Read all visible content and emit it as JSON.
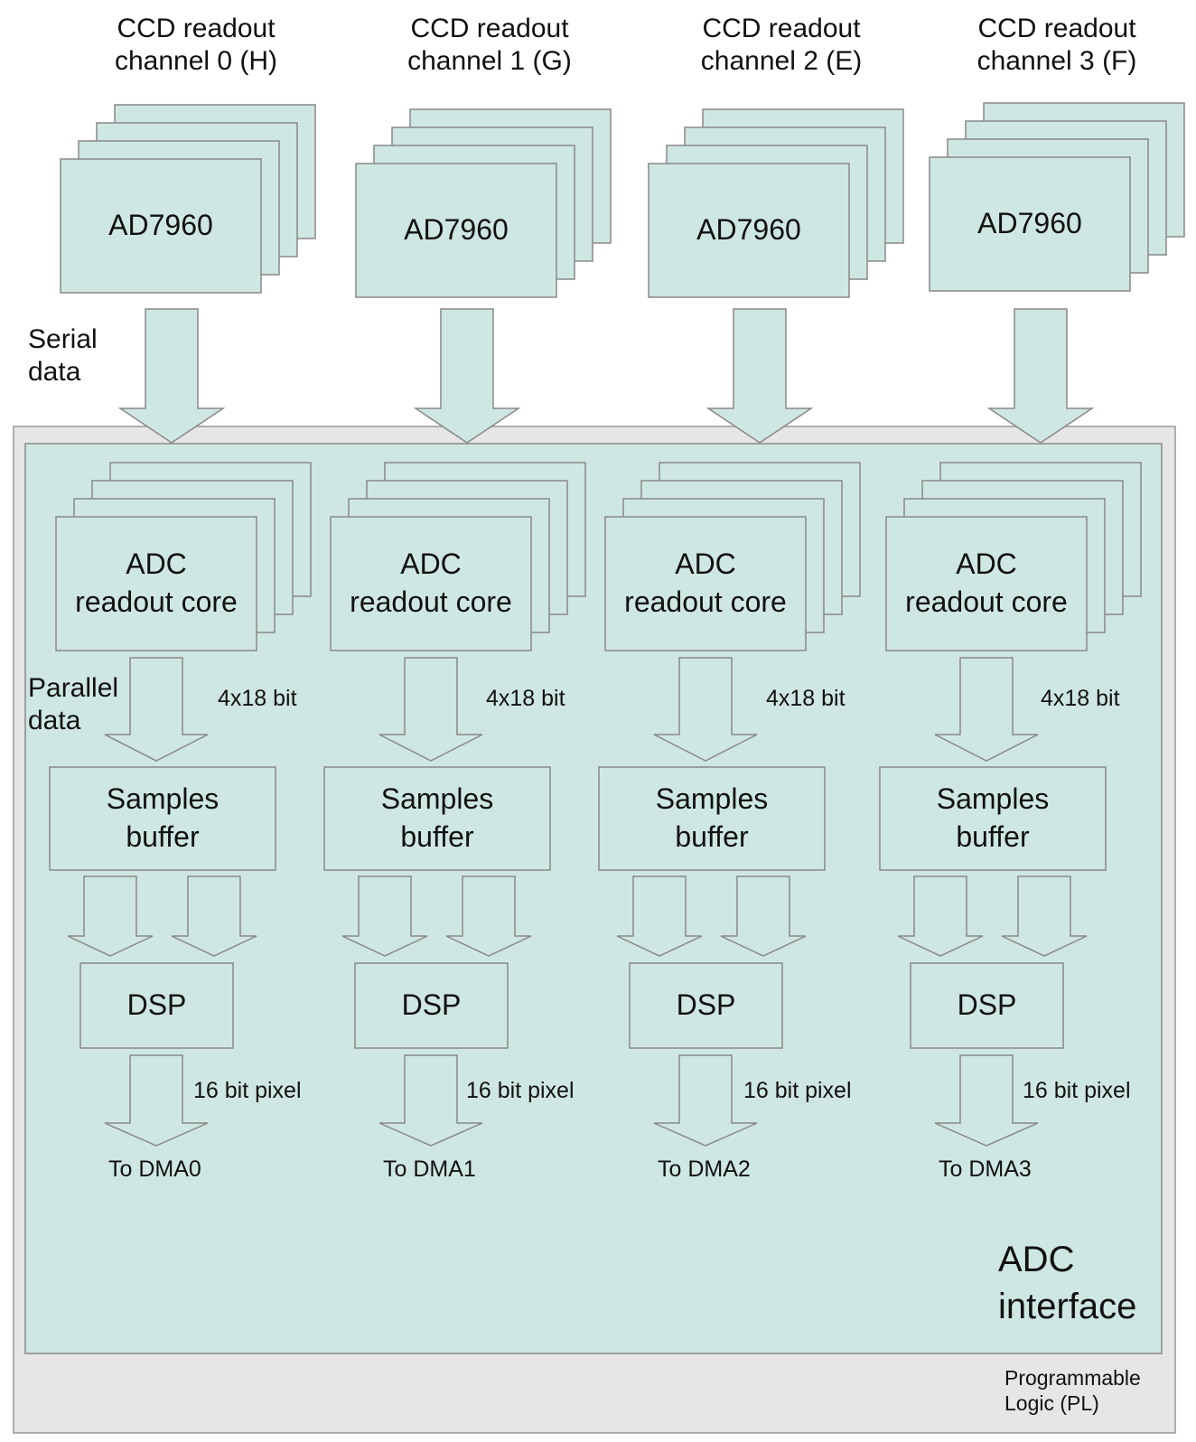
{
  "channels": [
    {
      "title_line1": "CCD readout",
      "title_line2": "channel 0 (H)",
      "adc_chip": "AD7960",
      "core_line1": "ADC",
      "core_line2": "readout core",
      "parallel_width": "4x18 bit",
      "buffer_line1": "Samples",
      "buffer_line2": "buffer",
      "dsp": "DSP",
      "pixel_width": "16 bit pixel",
      "destination": "To DMA0"
    },
    {
      "title_line1": "CCD readout",
      "title_line2": "channel 1 (G)",
      "adc_chip": "AD7960",
      "core_line1": "ADC",
      "core_line2": "readout core",
      "parallel_width": "4x18 bit",
      "buffer_line1": "Samples",
      "buffer_line2": "buffer",
      "dsp": "DSP",
      "pixel_width": "16 bit pixel",
      "destination": "To DMA1"
    },
    {
      "title_line1": "CCD readout",
      "title_line2": "channel 2 (E)",
      "adc_chip": "AD7960",
      "core_line1": "ADC",
      "core_line2": "readout core",
      "parallel_width": "4x18 bit",
      "buffer_line1": "Samples",
      "buffer_line2": "buffer",
      "dsp": "DSP",
      "pixel_width": "16 bit pixel",
      "destination": "To DMA2"
    },
    {
      "title_line1": "CCD readout",
      "title_line2": "channel 3 (F)",
      "adc_chip": "AD7960",
      "core_line1": "ADC",
      "core_line2": "readout core",
      "parallel_width": "4x18 bit",
      "buffer_line1": "Samples",
      "buffer_line2": "buffer",
      "dsp": "DSP",
      "pixel_width": "16 bit pixel",
      "destination": "To DMA3"
    }
  ],
  "labels": {
    "serial_line1": "Serial",
    "serial_line2": "data",
    "parallel_line1": "Parallel",
    "parallel_line2": "data",
    "adc_interface_line1": "ADC",
    "adc_interface_line2": "interface",
    "pl_line1": "Programmable",
    "pl_line2": "Logic (PL)"
  },
  "colors": {
    "block_fill": "#cfe7e3",
    "pl_fill": "#e6e6e6",
    "stroke": "#888888"
  }
}
